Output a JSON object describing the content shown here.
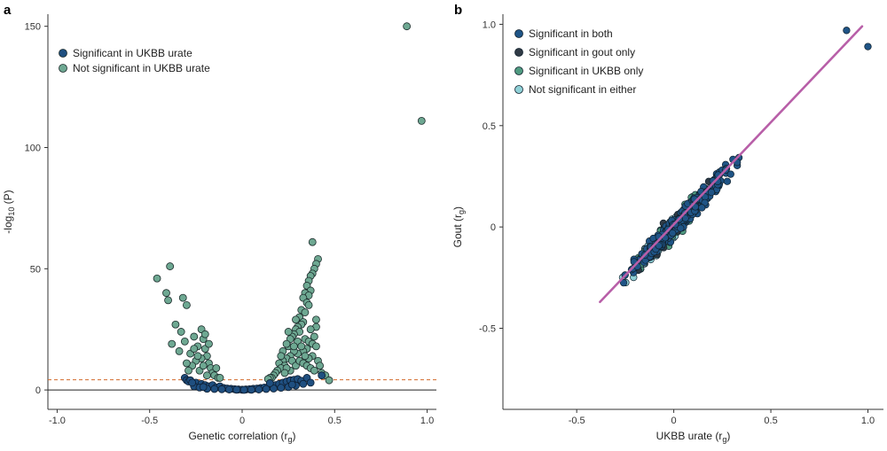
{
  "colors": {
    "sig_both": "#1f5486",
    "sig_gout": "#2f3a45",
    "sig_ukbb": "#4f9a80",
    "not_sig": "#8fd0d6",
    "sig_ukbb_urate": "#1f4f80",
    "not_sig_ukbb_urate": "#6ea892",
    "threshold_line": "#d2692a",
    "fit_line": "#b85fa8"
  },
  "chart_data": [
    {
      "panel": "a",
      "type": "scatter",
      "xlabel": "Genetic correlation (r",
      "xlabel_sub": "g",
      "xlabel_end": ")",
      "ylabel_pre": "-log",
      "ylabel_sub": "10",
      "ylabel_post": " (P)",
      "xlim": [
        -1.05,
        1.05
      ],
      "ylim": [
        -8,
        155
      ],
      "xticks": [
        -1.0,
        -0.5,
        0,
        0.5,
        1.0
      ],
      "xtick_labels": [
        "-1.0",
        "-0.5",
        "0",
        "0.5",
        "1.0"
      ],
      "yticks": [
        0,
        50,
        100,
        150
      ],
      "ytick_labels": [
        "0",
        "50",
        "100",
        "150"
      ],
      "threshold_y": 4.2,
      "zero_line_y": 0,
      "legend": {
        "placement": "top-left",
        "entries": [
          "Significant in UKBB urate",
          "Not significant in UKBB urate"
        ]
      },
      "series": [
        {
          "name": "Not significant in UKBB urate",
          "points": [
            [
              0.89,
              150
            ],
            [
              0.97,
              111
            ],
            [
              -0.46,
              46
            ],
            [
              -0.39,
              51
            ],
            [
              -0.41,
              40
            ],
            [
              -0.4,
              37
            ],
            [
              -0.38,
              19
            ],
            [
              -0.32,
              38
            ],
            [
              -0.3,
              35
            ],
            [
              -0.36,
              27
            ],
            [
              -0.33,
              24
            ],
            [
              -0.31,
              20
            ],
            [
              -0.28,
              15
            ],
            [
              -0.26,
              22
            ],
            [
              -0.24,
              18
            ],
            [
              -0.22,
              25
            ],
            [
              -0.21,
              21
            ],
            [
              -0.2,
              17
            ],
            [
              -0.19,
              14
            ],
            [
              -0.18,
              11
            ],
            [
              -0.17,
              9
            ],
            [
              -0.22,
              13
            ],
            [
              -0.25,
              12
            ],
            [
              -0.27,
              10
            ],
            [
              -0.29,
              8
            ],
            [
              -0.16,
              7
            ],
            [
              -0.15,
              6
            ],
            [
              -0.14,
              9
            ],
            [
              -0.13,
              5
            ],
            [
              -0.23,
              8
            ],
            [
              -0.19,
              6
            ],
            [
              -0.21,
              10
            ],
            [
              -0.3,
              11
            ],
            [
              -0.24,
              14
            ],
            [
              -0.26,
              17
            ],
            [
              -0.34,
              16
            ],
            [
              -0.2,
              23
            ],
            [
              -0.12,
              5
            ],
            [
              -0.18,
              19
            ],
            [
              0.38,
              61
            ],
            [
              0.41,
              54
            ],
            [
              0.4,
              52
            ],
            [
              0.39,
              50
            ],
            [
              0.38,
              48
            ],
            [
              0.37,
              47
            ],
            [
              0.36,
              45
            ],
            [
              0.35,
              43
            ],
            [
              0.37,
              41
            ],
            [
              0.34,
              40
            ],
            [
              0.36,
              39
            ],
            [
              0.33,
              38
            ],
            [
              0.35,
              36
            ],
            [
              0.31,
              30
            ],
            [
              0.33,
              28
            ],
            [
              0.32,
              27
            ],
            [
              0.3,
              26
            ],
            [
              0.29,
              25
            ],
            [
              0.31,
              24
            ],
            [
              0.28,
              23
            ],
            [
              0.27,
              22
            ],
            [
              0.26,
              21
            ],
            [
              0.34,
              21
            ],
            [
              0.36,
              20
            ],
            [
              0.38,
              19
            ],
            [
              0.4,
              18
            ],
            [
              0.35,
              17
            ],
            [
              0.33,
              16
            ],
            [
              0.3,
              15
            ],
            [
              0.28,
              16
            ],
            [
              0.26,
              14
            ],
            [
              0.24,
              13
            ],
            [
              0.22,
              12
            ],
            [
              0.2,
              11
            ],
            [
              0.23,
              10
            ],
            [
              0.21,
              9
            ],
            [
              0.19,
              8
            ],
            [
              0.25,
              18
            ],
            [
              0.27,
              12
            ],
            [
              0.29,
              10
            ],
            [
              0.31,
              12
            ],
            [
              0.33,
              11
            ],
            [
              0.35,
              10
            ],
            [
              0.37,
              9
            ],
            [
              0.39,
              8
            ],
            [
              0.41,
              12
            ],
            [
              0.43,
              7
            ],
            [
              0.45,
              6
            ],
            [
              0.47,
              4
            ],
            [
              0.18,
              7
            ],
            [
              0.17,
              6
            ],
            [
              0.16,
              5
            ],
            [
              0.15,
              5
            ],
            [
              0.14,
              4.5
            ],
            [
              0.22,
              16
            ],
            [
              0.24,
              19
            ],
            [
              0.32,
              33
            ],
            [
              0.34,
              32
            ],
            [
              0.36,
              35
            ],
            [
              0.3,
              20
            ],
            [
              0.28,
              18
            ],
            [
              0.4,
              26
            ],
            [
              0.39,
              22
            ],
            [
              0.26,
              8
            ],
            [
              0.24,
              9
            ],
            [
              0.42,
              10
            ],
            [
              0.38,
              14
            ],
            [
              0.36,
              13
            ],
            [
              0.29,
              29
            ],
            [
              0.25,
              24
            ],
            [
              0.21,
              14
            ],
            [
              0.23,
              7
            ],
            [
              0.37,
              25
            ],
            [
              0.4,
              29
            ],
            [
              0.32,
              18
            ],
            [
              0.34,
              14
            ]
          ]
        },
        {
          "name": "Significant in UKBB urate",
          "points": [
            [
              -0.31,
              5
            ],
            [
              -0.3,
              4
            ],
            [
              -0.29,
              3.5
            ],
            [
              -0.28,
              4
            ],
            [
              -0.25,
              3
            ],
            [
              -0.22,
              2.5
            ],
            [
              -0.2,
              2
            ],
            [
              -0.18,
              1.5
            ],
            [
              -0.16,
              2
            ],
            [
              -0.14,
              1
            ],
            [
              -0.12,
              1.5
            ],
            [
              -0.1,
              0.8
            ],
            [
              -0.08,
              0.6
            ],
            [
              -0.06,
              0.5
            ],
            [
              -0.04,
              0.3
            ],
            [
              -0.02,
              0.2
            ],
            [
              0.0,
              0.1
            ],
            [
              0.02,
              0.2
            ],
            [
              0.04,
              0.3
            ],
            [
              0.06,
              0.5
            ],
            [
              0.08,
              0.6
            ],
            [
              0.1,
              0.8
            ],
            [
              0.12,
              1.0
            ],
            [
              0.14,
              1.2
            ],
            [
              0.16,
              1.5
            ],
            [
              0.18,
              2
            ],
            [
              0.2,
              2.5
            ],
            [
              0.22,
              3
            ],
            [
              0.24,
              3.5
            ],
            [
              0.26,
              4
            ],
            [
              0.28,
              4.2
            ],
            [
              0.3,
              4.5
            ],
            [
              0.32,
              3.8
            ],
            [
              0.35,
              5
            ],
            [
              0.43,
              6
            ],
            [
              -0.26,
              1.5
            ],
            [
              -0.23,
              1
            ],
            [
              -0.19,
              0.5
            ],
            [
              -0.15,
              0.4
            ],
            [
              -0.11,
              0.3
            ],
            [
              -0.07,
              0.2
            ],
            [
              -0.03,
              0.1
            ],
            [
              0.01,
              0.05
            ],
            [
              0.05,
              0.1
            ],
            [
              0.09,
              0.2
            ],
            [
              0.13,
              0.4
            ],
            [
              0.17,
              0.6
            ],
            [
              0.21,
              0.9
            ],
            [
              0.25,
              1.2
            ],
            [
              0.29,
              1.8
            ],
            [
              0.33,
              2.5
            ],
            [
              0.37,
              3
            ],
            [
              -0.27,
              3
            ],
            [
              -0.21,
              1.2
            ],
            [
              0.15,
              2.8
            ],
            [
              0.27,
              2.2
            ]
          ]
        }
      ]
    },
    {
      "panel": "b",
      "type": "scatter",
      "xlabel": "UKBB urate (r",
      "xlabel_sub": "g",
      "xlabel_end": ")",
      "ylabel": "Gout (r",
      "ylabel_sub": "g",
      "ylabel_end": ")",
      "xlim": [
        -0.88,
        1.08
      ],
      "ylim": [
        -0.9,
        1.05
      ],
      "xticks": [
        -0.5,
        0,
        0.5,
        1.0
      ],
      "xtick_labels": [
        "-0.5",
        "0",
        "0.5",
        "1.0"
      ],
      "yticks": [
        -0.5,
        0,
        0.5,
        1.0
      ],
      "ytick_labels": [
        "-0.5",
        "0",
        "0.5",
        "1.0"
      ],
      "fit_line": [
        [
          -0.38,
          -0.37
        ],
        [
          0.97,
          0.99
        ]
      ],
      "legend": {
        "placement": "top-left",
        "entries": [
          "Significant in both",
          "Significant in gout only",
          "Significant in UKBB only",
          "Not significant in either"
        ]
      },
      "extra_points": [
        [
          0.89,
          0.97
        ],
        [
          1.0,
          0.89
        ]
      ]
    }
  ],
  "text": {
    "panel_a_label": "a",
    "panel_b_label": "b"
  }
}
